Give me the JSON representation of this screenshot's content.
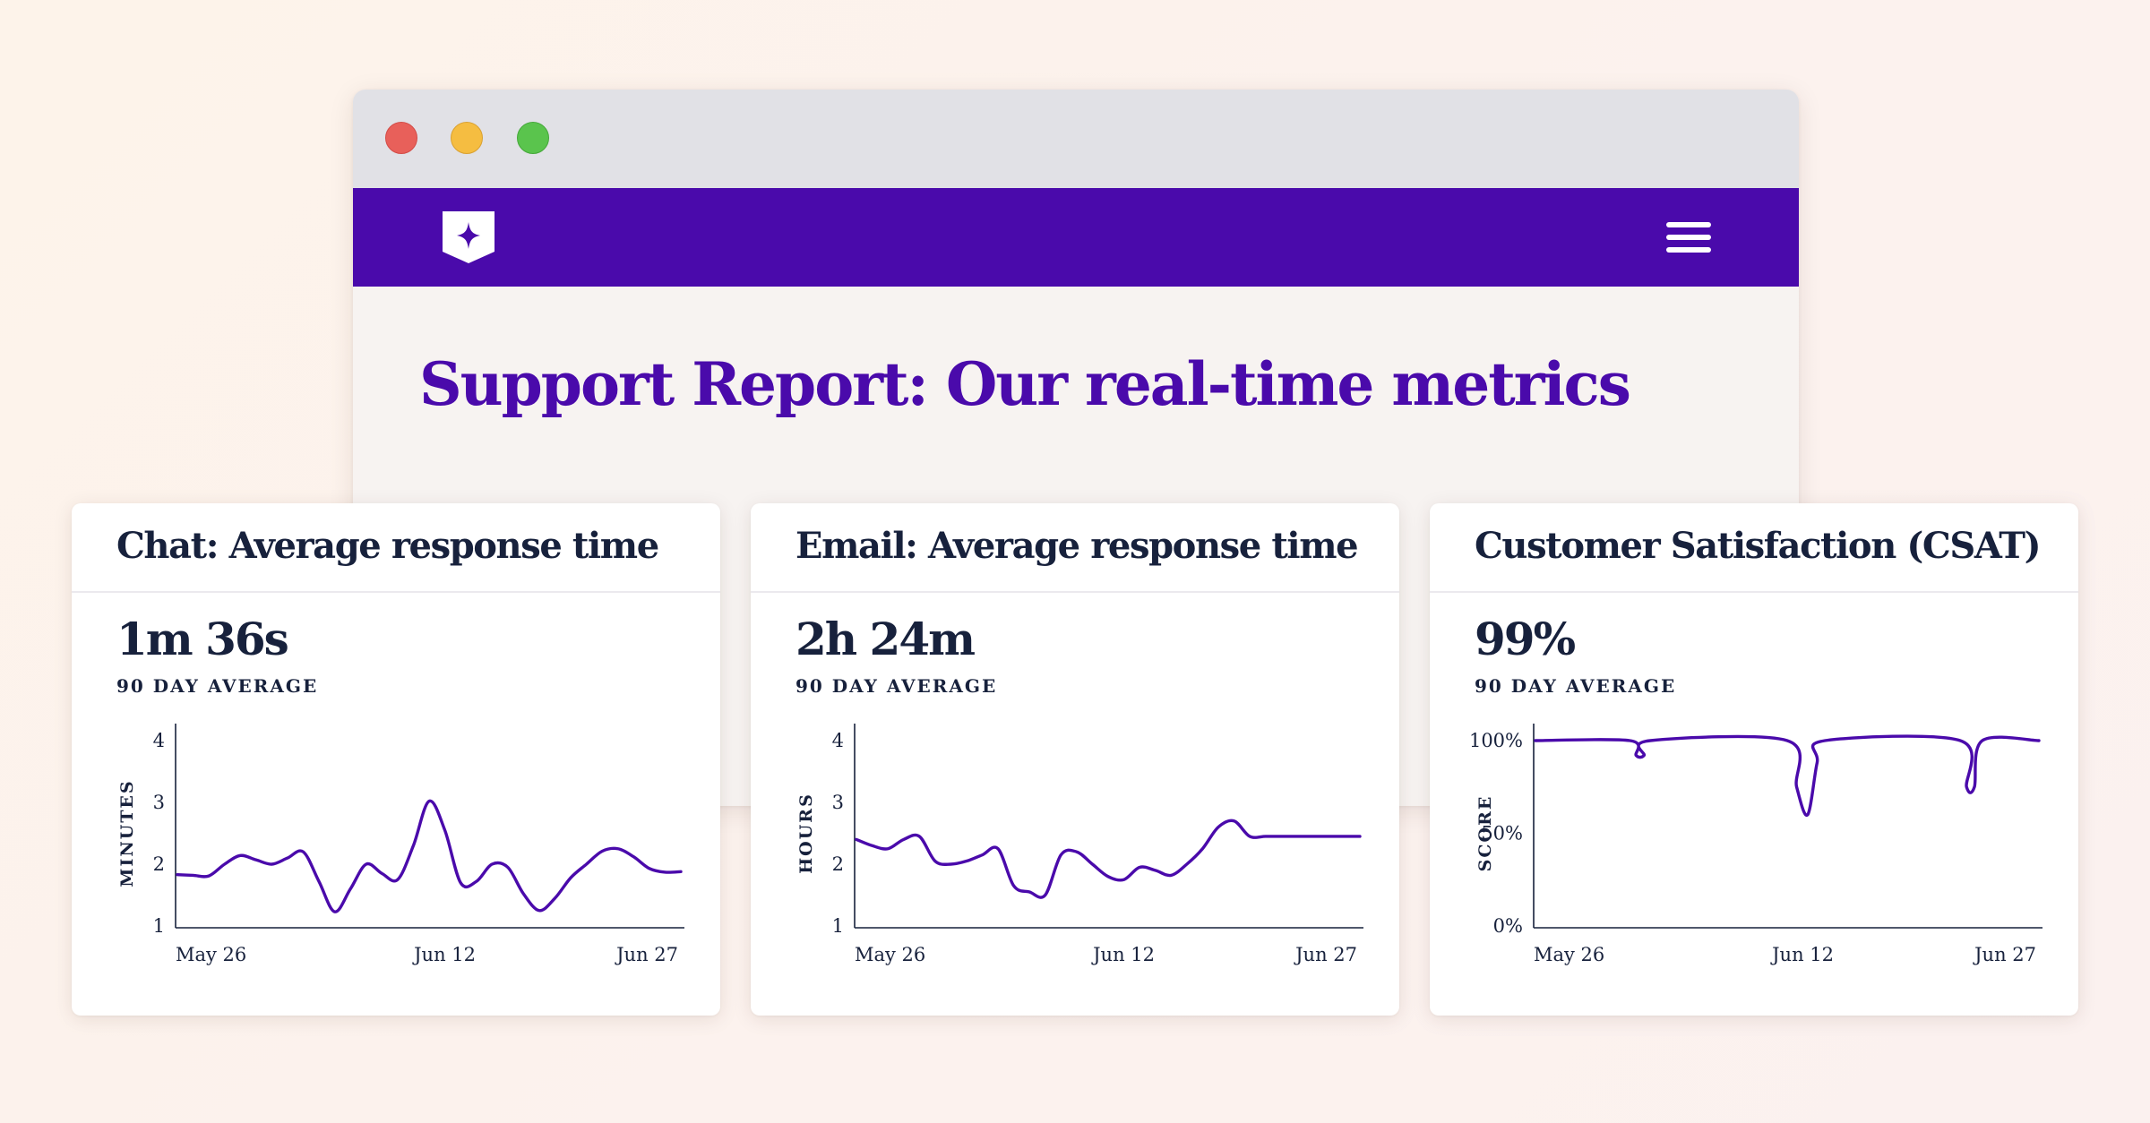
{
  "page": {
    "title": "Support Report: Our real-time metrics"
  },
  "window_controls": [
    "close",
    "minimize",
    "maximize"
  ],
  "navbar": {
    "logo_icon": "shield-star-icon",
    "menu_icon": "hamburger-menu-icon"
  },
  "colors": {
    "brand": "#4a0aab",
    "navy": "#17213c",
    "line": "#4a0aab"
  },
  "cards": [
    {
      "title": "Chat: Average response time",
      "value": "1m 36s",
      "subtitle": "90 DAY AVERAGE"
    },
    {
      "title": "Email: Average response time",
      "value": "2h 24m",
      "subtitle": "90 DAY AVERAGE"
    },
    {
      "title": "Customer Satisfaction (CSAT)",
      "value": "99%",
      "subtitle": "90 DAY AVERAGE"
    }
  ],
  "chart_data": [
    {
      "type": "line",
      "ylabel": "MINUTES",
      "ylim": [
        1,
        4
      ],
      "yticks": [
        {
          "v": 1,
          "label": "1"
        },
        {
          "v": 2,
          "label": "2"
        },
        {
          "v": 3,
          "label": "3"
        },
        {
          "v": 4,
          "label": "4"
        }
      ],
      "xlim": [
        0,
        32
      ],
      "xticks": [
        {
          "v": 0,
          "label": "May 26"
        },
        {
          "v": 17,
          "label": "Jun 12"
        },
        {
          "v": 32,
          "label": "Jun 27"
        }
      ],
      "grid": false,
      "series": [
        {
          "x": [
            0,
            1,
            2,
            3,
            4,
            5,
            6,
            7,
            8,
            9,
            10,
            11,
            12,
            13,
            14,
            15,
            16,
            17,
            18,
            19,
            20,
            21,
            22,
            23,
            24,
            25,
            26,
            27,
            28,
            29,
            30,
            31,
            32
          ],
          "y": [
            1.83,
            1.82,
            1.81,
            2.0,
            2.14,
            2.07,
            2.0,
            2.1,
            2.2,
            1.72,
            1.23,
            1.6,
            2.0,
            1.85,
            1.75,
            2.3,
            3.02,
            2.55,
            1.7,
            1.72,
            2.0,
            1.95,
            1.52,
            1.25,
            1.45,
            1.78,
            2.0,
            2.21,
            2.25,
            2.12,
            1.93,
            1.87,
            1.88
          ]
        }
      ]
    },
    {
      "type": "line",
      "ylabel": "HOURS",
      "ylim": [
        1,
        4
      ],
      "yticks": [
        {
          "v": 1,
          "label": "1"
        },
        {
          "v": 2,
          "label": "2"
        },
        {
          "v": 3,
          "label": "3"
        },
        {
          "v": 4,
          "label": "4"
        }
      ],
      "xlim": [
        0,
        32
      ],
      "xticks": [
        {
          "v": 0,
          "label": "May 26"
        },
        {
          "v": 17,
          "label": "Jun 12"
        },
        {
          "v": 32,
          "label": "Jun 27"
        }
      ],
      "grid": false,
      "series": [
        {
          "x": [
            0,
            1,
            2,
            3,
            4,
            5,
            6,
            7,
            8,
            9,
            10,
            11,
            12,
            13,
            14,
            15,
            16,
            17,
            18,
            19,
            20,
            21,
            22,
            23,
            24,
            25,
            26,
            27,
            28,
            29,
            30,
            31,
            32
          ],
          "y": [
            2.4,
            2.3,
            2.25,
            2.4,
            2.45,
            2.05,
            2.0,
            2.05,
            2.15,
            2.25,
            1.65,
            1.55,
            1.5,
            2.15,
            2.2,
            2.0,
            1.8,
            1.75,
            1.95,
            1.9,
            1.82,
            2.0,
            2.25,
            2.6,
            2.7,
            2.45,
            2.45,
            2.45,
            2.45,
            2.45,
            2.45,
            2.45,
            2.45
          ]
        }
      ]
    },
    {
      "type": "line",
      "ylabel": "SCORE",
      "ylim": [
        0,
        100
      ],
      "yticks": [
        {
          "v": 0,
          "label": "0%"
        },
        {
          "v": 50,
          "label": "50%"
        },
        {
          "v": 100,
          "label": "100%"
        }
      ],
      "xlim": [
        0,
        32
      ],
      "xticks": [
        {
          "v": 0,
          "label": "May 26"
        },
        {
          "v": 17,
          "label": "Jun 12"
        },
        {
          "v": 32,
          "label": "Jun 27"
        }
      ],
      "grid": false,
      "series": [
        {
          "x": [
            0,
            6,
            6.4,
            6.9,
            7.3,
            16,
            16.6,
            17.3,
            17.9,
            18.4,
            27,
            27.4,
            27.9,
            28.4,
            32
          ],
          "y": [
            100,
            100,
            92,
            92,
            100,
            100,
            75,
            60,
            88,
            100,
            100,
            75,
            75,
            100,
            100
          ]
        }
      ]
    }
  ]
}
